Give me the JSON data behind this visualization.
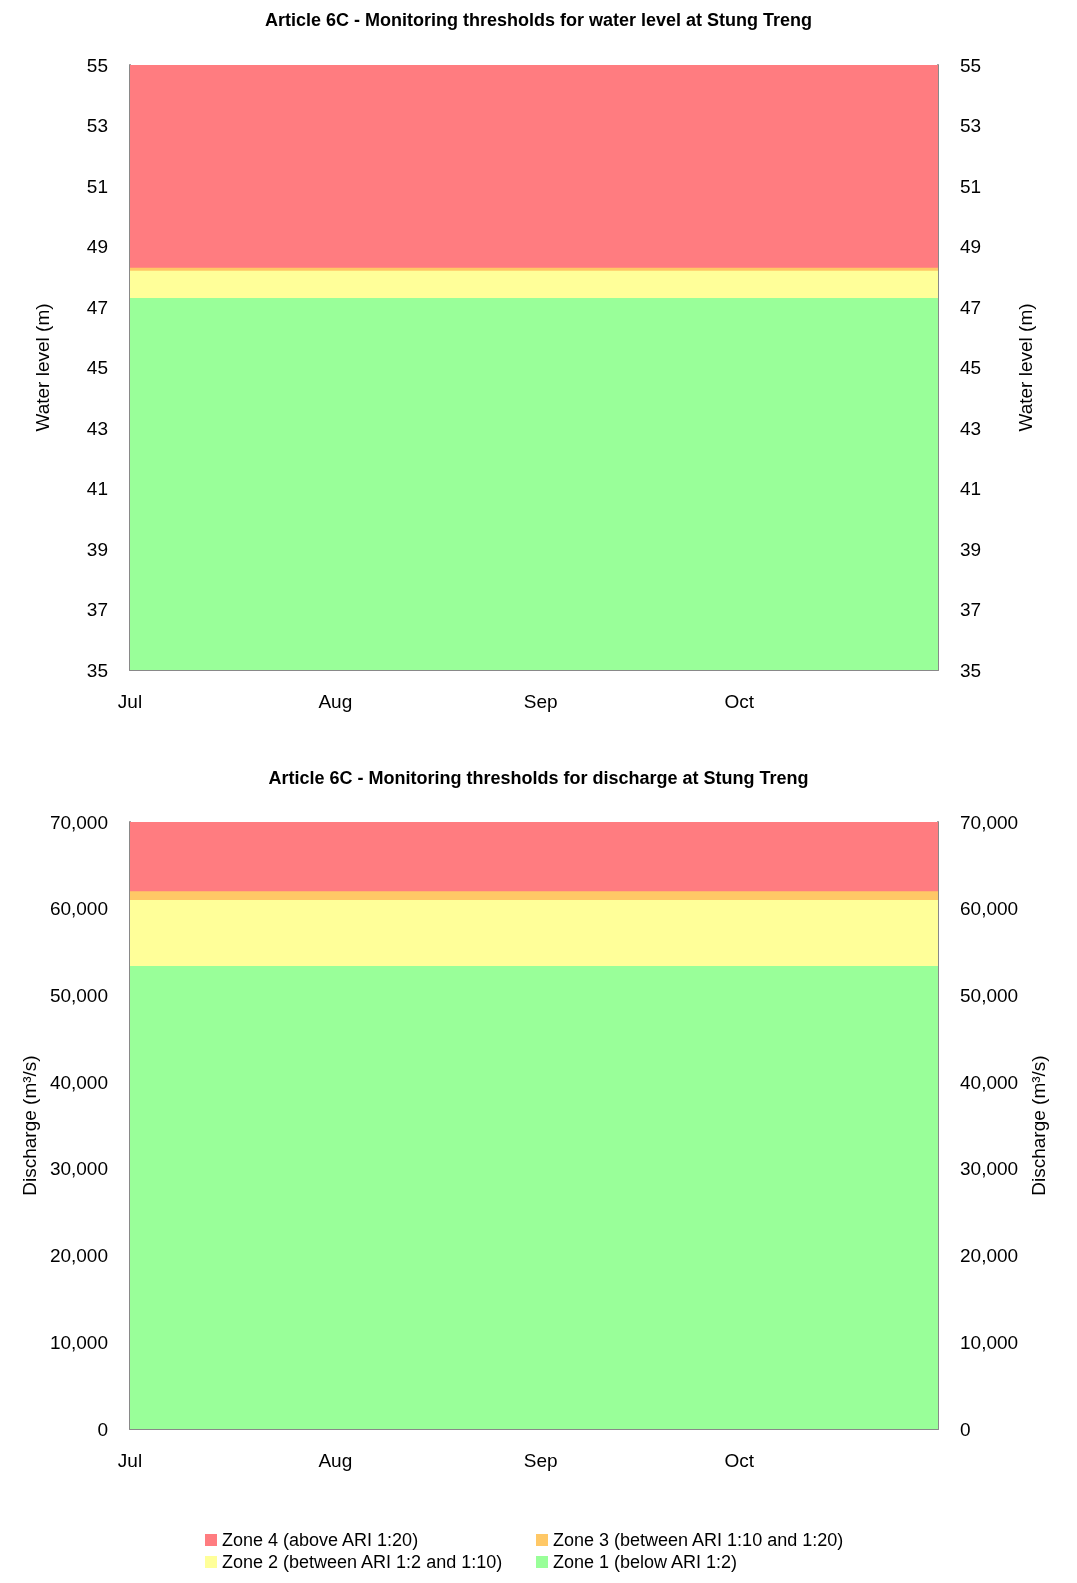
{
  "chart_data": [
    {
      "type": "area",
      "title": "Article 6C - Monitoring thresholds for water level at Stung Treng",
      "ylabel": "Water level (m)",
      "y2label": "Water level (m)",
      "legend": false,
      "x": [
        "--07-01",
        "--10-31"
      ],
      "xlim": [
        "--07-01",
        "--10-31"
      ],
      "xticks": [
        {
          "value": "--07-01",
          "label": "Jul"
        },
        {
          "value": "--08-01",
          "label": "Aug"
        },
        {
          "value": "--09-01",
          "label": "Sep"
        },
        {
          "value": "--10-01",
          "label": "Oct"
        }
      ],
      "ylim": [
        35,
        55
      ],
      "yticks": [
        35,
        37,
        39,
        41,
        43,
        45,
        47,
        49,
        51,
        53,
        55
      ],
      "y2lim": [
        35,
        55
      ],
      "y2ticks": [
        35,
        37,
        39,
        41,
        43,
        45,
        47,
        49,
        51,
        53,
        55
      ],
      "series": [
        {
          "color": "#99ff99",
          "values": [
            47.3,
            47.3
          ]
        },
        {
          "color": "#ffff99",
          "values": [
            48.2,
            48.2
          ]
        },
        {
          "color": "#ffc866",
          "values": [
            48.3,
            48.3
          ]
        },
        {
          "color": "#ff7c80",
          "values": [
            55,
            55
          ]
        }
      ]
    },
    {
      "type": "area",
      "title": "Article 6C - Monitoring thresholds for discharge at Stung Treng",
      "ylabel": "Discharge (m³/s)",
      "y2label": "Discharge (m³/s)",
      "legend": "bottom",
      "x": [
        "--07-01",
        "--10-31"
      ],
      "xlim": [
        "--07-01",
        "--10-31"
      ],
      "xticks": [
        {
          "value": "--07-01",
          "label": "Jul"
        },
        {
          "value": "--08-01",
          "label": "Aug"
        },
        {
          "value": "--09-01",
          "label": "Sep"
        },
        {
          "value": "--10-01",
          "label": "Oct"
        }
      ],
      "ylim": [
        0,
        70000
      ],
      "yticks": [
        {
          "value": 0,
          "label": "0"
        },
        {
          "value": 10000,
          "label": "10,000"
        },
        {
          "value": 20000,
          "label": "20,000"
        },
        {
          "value": 30000,
          "label": "30,000"
        },
        {
          "value": 40000,
          "label": "40,000"
        },
        {
          "value": 50000,
          "label": "50,000"
        },
        {
          "value": 60000,
          "label": "60,000"
        },
        {
          "value": 70000,
          "label": "70,000"
        }
      ],
      "y2lim": [
        0,
        70000
      ],
      "y2ticks": [
        {
          "value": 0,
          "label": "0"
        },
        {
          "value": 10000,
          "label": "10,000"
        },
        {
          "value": 20000,
          "label": "20,000"
        },
        {
          "value": 30000,
          "label": "30,000"
        },
        {
          "value": 40000,
          "label": "40,000"
        },
        {
          "value": 50000,
          "label": "50,000"
        },
        {
          "value": 60000,
          "label": "60,000"
        },
        {
          "value": 70000,
          "label": "70,000"
        }
      ],
      "series": [
        {
          "name": "Zone 1 (below ARI 1:2)",
          "color": "#99ff99",
          "values": [
            53400,
            53400
          ]
        },
        {
          "name": "Zone 2 (between ARI 1:2 and 1:10)",
          "color": "#ffff99",
          "values": [
            61000,
            61000
          ]
        },
        {
          "name": "Zone 3 (between ARI 1:10 and 1:20)",
          "color": "#ffc866",
          "values": [
            62000,
            62000
          ]
        },
        {
          "name": "Zone 4 (above ARI 1:20)",
          "color": "#ff7c80",
          "values": [
            70000,
            70000
          ]
        }
      ]
    }
  ]
}
